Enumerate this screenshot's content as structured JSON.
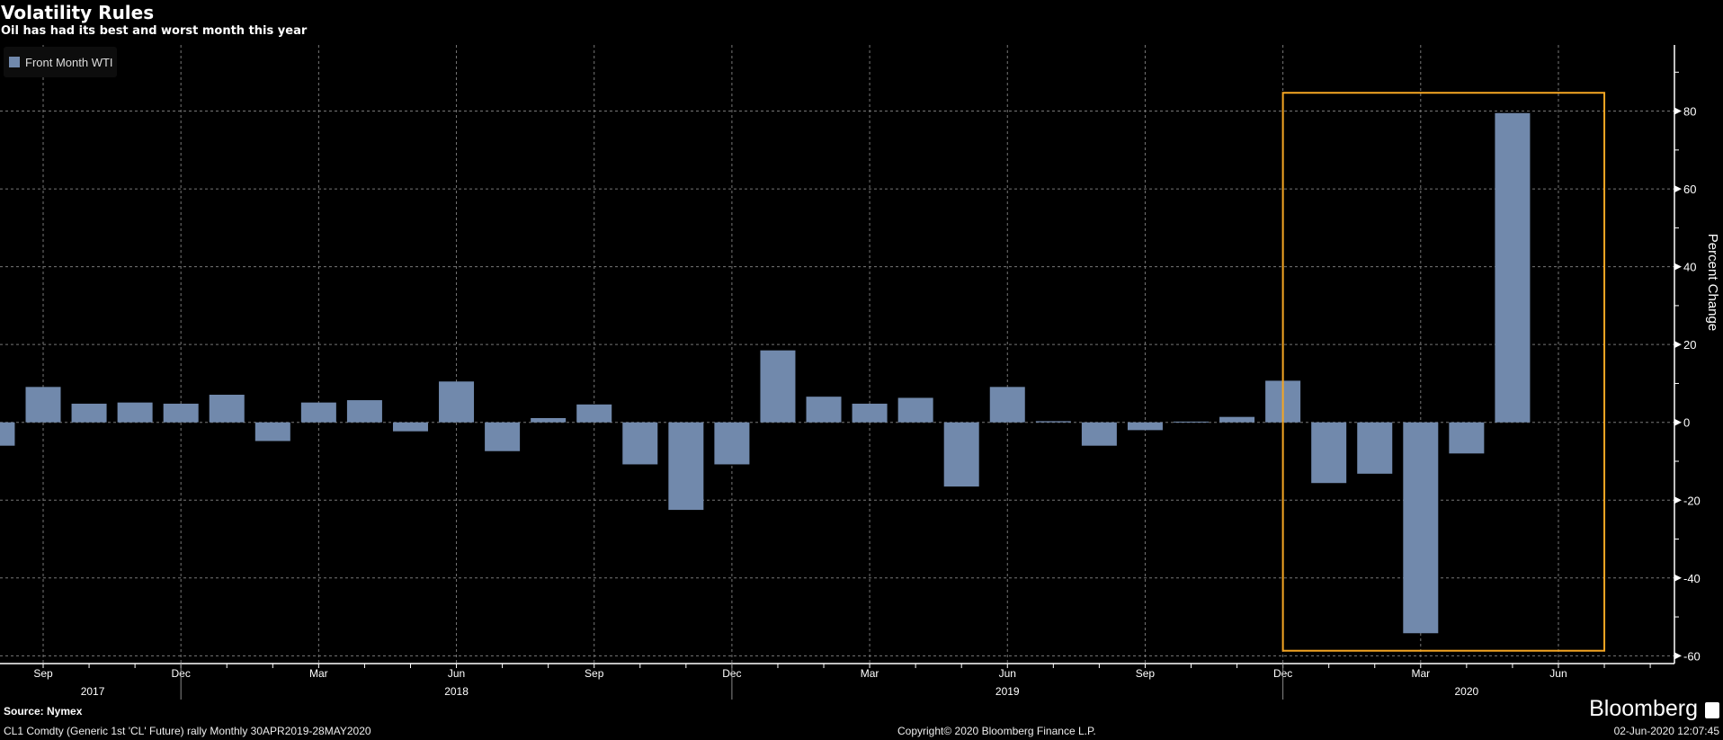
{
  "header": {
    "title": "Volatility Rules",
    "subtitle": "Oil has had its best and worst month this year"
  },
  "footer": {
    "source": "Source: Nymex",
    "description": "CL1 Comdty (Generic 1st 'CL' Future) rally  Monthly 30APR2019-28MAY2020",
    "copyright": "Copyright© 2020 Bloomberg Finance L.P.",
    "timestamp": "02-Jun-2020 12:07:45",
    "brand": "Bloomberg"
  },
  "chart_data": {
    "type": "bar",
    "title": "Volatility Rules",
    "subtitle": "Oil has had its best and worst month this year",
    "ylabel": "Percent Change",
    "ylim": [
      -62,
      97
    ],
    "yticks": [
      -60,
      -40,
      -20,
      0,
      20,
      40,
      60,
      80
    ],
    "grid": true,
    "legend": {
      "position": "top-left",
      "entries": [
        "Front Month WTI"
      ]
    },
    "colors": {
      "bar": "#7189ac",
      "highlight": "#f5a623"
    },
    "x_month_labels": [
      "Sep",
      "Dec",
      "Mar",
      "Jun",
      "Sep",
      "Dec",
      "Mar",
      "Jun",
      "Sep",
      "Dec",
      "Mar",
      "Jun"
    ],
    "x_year_labels": [
      "2017",
      "2018",
      "2019",
      "2020"
    ],
    "categories": [
      "2017-08",
      "2017-09",
      "2017-10",
      "2017-11",
      "2017-12",
      "2018-01",
      "2018-02",
      "2018-03",
      "2018-04",
      "2018-05",
      "2018-06",
      "2018-07",
      "2018-08",
      "2018-09",
      "2018-10",
      "2018-11",
      "2018-12",
      "2019-01",
      "2019-02",
      "2019-03",
      "2019-04",
      "2019-05",
      "2019-06",
      "2019-07",
      "2019-08",
      "2019-09",
      "2019-10",
      "2019-11",
      "2019-12",
      "2020-01",
      "2020-02",
      "2020-03",
      "2020-04",
      "2020-05"
    ],
    "series": [
      {
        "name": "Front Month WTI",
        "values": [
          -6,
          9.1,
          4.8,
          5.1,
          4.8,
          7.1,
          -4.8,
          5.1,
          5.7,
          -2.3,
          10.5,
          -7.4,
          1.1,
          4.6,
          -10.8,
          -22.5,
          -10.8,
          18.5,
          6.6,
          4.8,
          6.3,
          -16.5,
          9.1,
          0.3,
          -6,
          -2,
          0.2,
          1.4,
          10.7,
          -15.6,
          -13.2,
          -54.2,
          -8,
          79.5
        ]
      }
    ],
    "annotation": {
      "type": "highlight-box",
      "x_from": "2019-12",
      "x_to": "2020-07",
      "y_from": -58.7,
      "y_to": 84.7
    }
  }
}
